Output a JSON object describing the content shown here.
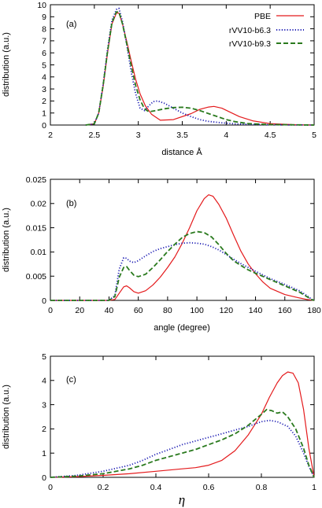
{
  "legend": {
    "PBE": "PBE",
    "b63": "rVV10-b6.3",
    "b93": "rVV10-b9.3"
  },
  "colors": {
    "PBE": "#e41a1c",
    "b63": "#1f1fb4",
    "b93": "#2a7a1e"
  },
  "chart_data": [
    {
      "type": "line",
      "panel_label": "(a)",
      "xlabel": "distance Å",
      "ylabel": "distribution (a.u.)",
      "xlim": [
        2,
        5
      ],
      "ylim": [
        0,
        10
      ],
      "xticks": [
        2,
        2.5,
        3,
        3.5,
        4,
        4.5,
        5
      ],
      "xtick_labels": [
        "2",
        "2.5",
        "3",
        "3.5",
        "4",
        "4.5",
        "5"
      ],
      "yticks": [
        0,
        1,
        2,
        3,
        4,
        5,
        6,
        7,
        8,
        9,
        10
      ],
      "ytick_labels": [
        "0",
        "1",
        "2",
        "3",
        "4",
        "5",
        "6",
        "7",
        "8",
        "9",
        "10"
      ],
      "series": [
        {
          "name": "PBE",
          "key": "PBE",
          "x": [
            2.4,
            2.5,
            2.55,
            2.6,
            2.65,
            2.7,
            2.75,
            2.78,
            2.82,
            2.87,
            2.92,
            2.97,
            3.02,
            3.08,
            3.15,
            3.25,
            3.4,
            3.6,
            3.7,
            3.8,
            3.86,
            3.95,
            4.05,
            4.15,
            4.3,
            4.5,
            4.8,
            5.0
          ],
          "y": [
            0,
            0.1,
            1.0,
            3.2,
            6.0,
            8.4,
            9.3,
            9.3,
            8.4,
            6.9,
            5.3,
            3.8,
            2.6,
            1.6,
            0.9,
            0.4,
            0.45,
            0.95,
            1.3,
            1.5,
            1.55,
            1.4,
            1.05,
            0.7,
            0.35,
            0.12,
            0.02,
            0
          ]
        },
        {
          "name": "rVV10-b6.3",
          "key": "b63",
          "x": [
            2.4,
            2.5,
            2.55,
            2.6,
            2.65,
            2.7,
            2.75,
            2.78,
            2.82,
            2.87,
            2.92,
            2.97,
            3.02,
            3.07,
            3.12,
            3.17,
            3.22,
            3.3,
            3.4,
            3.5,
            3.6,
            3.7,
            3.8,
            3.95,
            4.1,
            4.3,
            4.6,
            5.0
          ],
          "y": [
            0,
            0.1,
            1.0,
            3.4,
            6.3,
            8.7,
            9.6,
            9.7,
            8.6,
            6.6,
            4.4,
            2.6,
            1.4,
            1.2,
            1.6,
            1.95,
            2.0,
            1.8,
            1.4,
            1.0,
            0.7,
            0.45,
            0.3,
            0.18,
            0.1,
            0.05,
            0.02,
            0
          ]
        },
        {
          "name": "rVV10-b9.3",
          "key": "b93",
          "x": [
            2.4,
            2.5,
            2.55,
            2.6,
            2.65,
            2.7,
            2.75,
            2.78,
            2.82,
            2.87,
            2.92,
            2.97,
            3.02,
            3.07,
            3.12,
            3.2,
            3.3,
            3.4,
            3.5,
            3.6,
            3.7,
            3.8,
            3.9,
            4.0,
            4.1,
            4.25,
            4.5,
            5.0
          ],
          "y": [
            0,
            0.1,
            1.0,
            3.3,
            6.1,
            8.5,
            9.4,
            9.4,
            8.4,
            6.7,
            4.9,
            3.3,
            2.1,
            1.35,
            1.1,
            1.2,
            1.35,
            1.45,
            1.48,
            1.4,
            1.2,
            0.95,
            0.7,
            0.45,
            0.28,
            0.12,
            0.04,
            0
          ]
        }
      ]
    },
    {
      "type": "line",
      "panel_label": "(b)",
      "xlabel": "angle (degree)",
      "ylabel": "distribution (a.u.)",
      "xlim": [
        0,
        180
      ],
      "ylim": [
        0,
        0.025
      ],
      "xticks": [
        0,
        20,
        40,
        60,
        80,
        100,
        120,
        140,
        160,
        180
      ],
      "xtick_labels": [
        "0",
        "20",
        "40",
        "60",
        "80",
        "100",
        "120",
        "140",
        "160",
        "180"
      ],
      "yticks": [
        0,
        0.005,
        0.01,
        0.015,
        0.02,
        0.025
      ],
      "ytick_labels": [
        "0",
        "0.005",
        "0.01",
        "0.015",
        "0.02",
        "0.025"
      ],
      "series": [
        {
          "name": "PBE",
          "key": "PBE",
          "x": [
            0,
            40,
            44,
            47,
            50,
            52,
            54,
            57,
            60,
            65,
            70,
            75,
            80,
            85,
            90,
            95,
            100,
            105,
            108,
            111,
            115,
            120,
            125,
            130,
            135,
            140,
            145,
            150,
            160,
            170,
            175,
            180
          ],
          "y": [
            0,
            0,
            0.0002,
            0.0015,
            0.0028,
            0.003,
            0.0026,
            0.0018,
            0.0015,
            0.002,
            0.0032,
            0.0048,
            0.0068,
            0.009,
            0.0118,
            0.015,
            0.0185,
            0.021,
            0.0218,
            0.0215,
            0.0198,
            0.017,
            0.0135,
            0.0102,
            0.0075,
            0.0055,
            0.0038,
            0.0025,
            0.0012,
            0.0005,
            0.0002,
            0
          ]
        },
        {
          "name": "rVV10-b6.3",
          "key": "b63",
          "x": [
            0,
            40,
            44,
            47,
            50,
            52,
            54,
            57,
            60,
            65,
            70,
            75,
            80,
            85,
            90,
            95,
            100,
            105,
            110,
            115,
            120,
            125,
            130,
            135,
            140,
            150,
            160,
            170,
            175,
            178,
            180
          ],
          "y": [
            0,
            0,
            0.001,
            0.0065,
            0.0088,
            0.0087,
            0.0081,
            0.0078,
            0.0082,
            0.0092,
            0.0101,
            0.0107,
            0.0111,
            0.0115,
            0.0118,
            0.0119,
            0.0118,
            0.0116,
            0.0111,
            0.0104,
            0.0095,
            0.0085,
            0.0076,
            0.0068,
            0.006,
            0.0045,
            0.0033,
            0.002,
            0.001,
            0.0003,
            0
          ]
        },
        {
          "name": "rVV10-b9.3",
          "key": "b93",
          "x": [
            0,
            40,
            44,
            47,
            50,
            52,
            54,
            57,
            60,
            65,
            70,
            75,
            80,
            85,
            90,
            95,
            100,
            105,
            110,
            115,
            120,
            125,
            130,
            135,
            140,
            150,
            160,
            170,
            175,
            178,
            180
          ],
          "y": [
            0,
            0,
            0.0008,
            0.0048,
            0.0068,
            0.007,
            0.0062,
            0.0052,
            0.0049,
            0.0054,
            0.0068,
            0.0084,
            0.0101,
            0.0116,
            0.013,
            0.0138,
            0.0142,
            0.014,
            0.0131,
            0.0115,
            0.0097,
            0.0082,
            0.0072,
            0.0063,
            0.0056,
            0.0043,
            0.003,
            0.0017,
            0.0008,
            0.0002,
            0
          ]
        }
      ]
    },
    {
      "type": "line",
      "panel_label": "(c)",
      "xlabel": "η",
      "ylabel": "distribution (a.u.)",
      "xlim": [
        0,
        1
      ],
      "ylim": [
        0,
        5
      ],
      "xticks": [
        0,
        0.2,
        0.4,
        0.6,
        0.8,
        1
      ],
      "xtick_labels": [
        "0",
        "0.2",
        "0.4",
        "0.6",
        "0.8",
        "1"
      ],
      "yticks": [
        0,
        1,
        2,
        3,
        4,
        5
      ],
      "ytick_labels": [
        "0",
        "1",
        "2",
        "3",
        "4",
        "5"
      ],
      "series": [
        {
          "name": "PBE",
          "key": "PBE",
          "x": [
            0,
            0.1,
            0.2,
            0.3,
            0.4,
            0.5,
            0.55,
            0.6,
            0.65,
            0.7,
            0.75,
            0.8,
            0.83,
            0.86,
            0.88,
            0.9,
            0.92,
            0.94,
            0.96,
            0.98,
            1.0
          ],
          "y": [
            0,
            0.03,
            0.08,
            0.15,
            0.25,
            0.35,
            0.4,
            0.5,
            0.7,
            1.1,
            1.75,
            2.6,
            3.3,
            3.9,
            4.2,
            4.35,
            4.3,
            3.9,
            2.8,
            1.2,
            0
          ]
        },
        {
          "name": "rVV10-b6.3",
          "key": "b63",
          "x": [
            0,
            0.1,
            0.2,
            0.3,
            0.35,
            0.4,
            0.45,
            0.5,
            0.55,
            0.6,
            0.65,
            0.7,
            0.75,
            0.8,
            0.83,
            0.86,
            0.9,
            0.93,
            0.96,
            0.98,
            1.0
          ],
          "y": [
            0,
            0.08,
            0.25,
            0.5,
            0.7,
            0.95,
            1.15,
            1.35,
            1.5,
            1.65,
            1.8,
            1.95,
            2.1,
            2.3,
            2.35,
            2.3,
            2.1,
            1.7,
            1.0,
            0.45,
            0
          ]
        },
        {
          "name": "rVV10-b9.3",
          "key": "b93",
          "x": [
            0,
            0.1,
            0.2,
            0.3,
            0.35,
            0.4,
            0.45,
            0.5,
            0.55,
            0.6,
            0.65,
            0.7,
            0.75,
            0.8,
            0.82,
            0.84,
            0.86,
            0.88,
            0.9,
            0.93,
            0.96,
            0.98,
            1.0
          ],
          "y": [
            0,
            0.05,
            0.15,
            0.35,
            0.5,
            0.7,
            0.85,
            1.0,
            1.15,
            1.35,
            1.55,
            1.8,
            2.15,
            2.6,
            2.8,
            2.75,
            2.65,
            2.7,
            2.5,
            2.0,
            1.2,
            0.5,
            0
          ]
        }
      ]
    }
  ]
}
